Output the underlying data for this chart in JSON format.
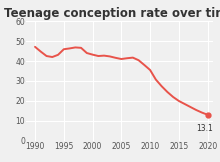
{
  "title": "Teenage conception rate over time",
  "years": [
    1990,
    1991,
    1992,
    1993,
    1994,
    1995,
    1996,
    1997,
    1998,
    1999,
    2000,
    2001,
    2002,
    2003,
    2004,
    2005,
    2006,
    2007,
    2008,
    2009,
    2010,
    2011,
    2012,
    2013,
    2014,
    2015,
    2016,
    2017,
    2018,
    2019,
    2020
  ],
  "values": [
    47.1,
    44.7,
    42.5,
    42.0,
    43.1,
    45.9,
    46.3,
    46.8,
    46.6,
    44.0,
    43.2,
    42.5,
    42.7,
    42.3,
    41.6,
    41.0,
    41.4,
    41.7,
    40.4,
    38.0,
    35.5,
    30.7,
    27.4,
    24.5,
    22.0,
    20.0,
    18.5,
    17.0,
    15.5,
    14.2,
    13.1
  ],
  "line_color": "#e8534a",
  "background_color": "#f0f0f0",
  "annotation_text": "13.1",
  "annotation_year": 2020,
  "annotation_value": 13.1,
  "xlim": [
    1988.5,
    2021
  ],
  "ylim": [
    0,
    60
  ],
  "yticks": [
    0,
    10,
    20,
    30,
    40,
    50,
    60
  ],
  "xticks": [
    1990,
    1995,
    2000,
    2005,
    2010,
    2015,
    2020
  ],
  "title_fontsize": 8.5,
  "tick_fontsize": 5.5,
  "grid_color": "#ffffff",
  "line_width": 1.4,
  "marker_size": 3.5
}
